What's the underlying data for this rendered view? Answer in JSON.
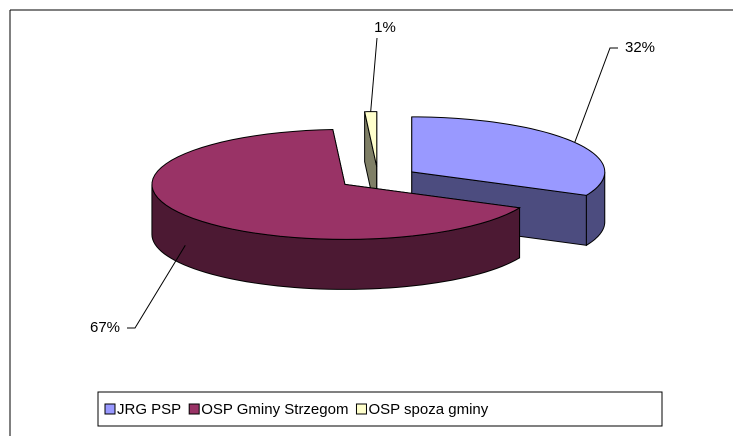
{
  "chart_data": {
    "type": "pie",
    "categories": [
      "JRG PSP",
      "OSP Gminy Strzegom",
      "OSP spoza gminy"
    ],
    "values": [
      32,
      67,
      1
    ],
    "value_labels": [
      "32%",
      "67%",
      "1%"
    ],
    "colors": [
      "#9999ff",
      "#993366",
      "#ffffcc"
    ],
    "legend": "bottom"
  }
}
